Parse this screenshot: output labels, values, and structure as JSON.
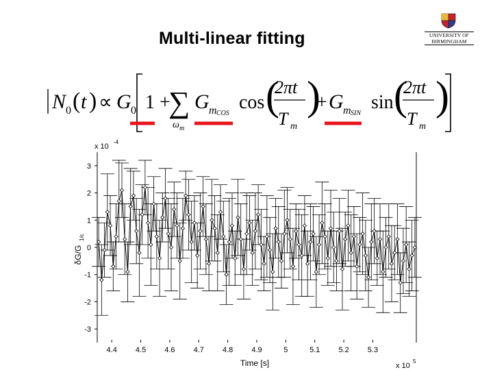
{
  "slide": {
    "title": "Multi-linear fitting"
  },
  "logo": {
    "name_line1": "UNIVERSITY OF",
    "name_line2": "BIRMINGHAM",
    "colors": {
      "crest_red": "#c8232c",
      "crest_gold": "#e8b73a",
      "crest_blue": "#2c3e8c"
    }
  },
  "equation": {
    "lhs_abs": "N",
    "lhs_sub": "0",
    "lhs_arg": "t",
    "proportional": "∝",
    "g0": "G",
    "g0_sub": "0",
    "one_plus": "1 +",
    "sum": "∑",
    "sum_index": "ω",
    "sum_index_sub": "m",
    "gcos": "G",
    "gcos_sub": "m",
    "gcos_subsub": "COS",
    "cos": "cos",
    "numerator": "2πt",
    "denominator": "T",
    "denominator_sub": "m",
    "plus": "+",
    "gsin": "G",
    "gsin_sub": "m",
    "gsin_subsub": "SIN",
    "sin": "sin",
    "underline_color": "#e8141c"
  },
  "chart_data": {
    "type": "scatter",
    "style": "line with markers and error bars",
    "marker": "diamond",
    "xlabel": "Time [s]",
    "ylabel": "δG/G",
    "ylabel_sub": "1/c",
    "x_exponent_label": "x 10",
    "x_exponent_power": "5",
    "y_exponent_label": "x 10",
    "y_exponent_power": "-4",
    "xlim": [
      4.35,
      5.45
    ],
    "ylim": [
      -3.5,
      3.5
    ],
    "x_ticks": [
      4.4,
      4.5,
      4.6,
      4.7,
      4.8,
      4.9,
      5.0,
      5.1,
      5.2,
      5.3
    ],
    "x_tick_labels": [
      "4.4",
      "4.5",
      "4.6",
      "4.7",
      "4.8",
      "4.9",
      "5",
      "5.1",
      "5.2",
      "5.3"
    ],
    "y_ticks": [
      3,
      2,
      1,
      0,
      -1,
      -2,
      -3
    ],
    "y_tick_labels": [
      "3",
      "2",
      "1",
      "0",
      "-1",
      "-2",
      "-3"
    ],
    "grid": false,
    "series": [
      {
        "x": [
          4.355,
          4.365,
          4.375,
          4.385,
          4.395,
          4.405,
          4.415,
          4.425,
          4.435,
          4.445,
          4.455,
          4.465,
          4.475,
          4.485,
          4.495,
          4.505,
          4.515,
          4.525,
          4.535,
          4.545,
          4.555,
          4.565,
          4.575,
          4.585,
          4.595,
          4.605,
          4.615,
          4.625,
          4.635,
          4.645,
          4.655,
          4.665,
          4.675,
          4.685,
          4.695,
          4.705,
          4.715,
          4.725,
          4.735,
          4.745,
          4.755,
          4.765,
          4.775,
          4.785,
          4.795,
          4.805,
          4.815,
          4.825,
          4.835,
          4.845,
          4.855,
          4.865,
          4.875,
          4.885,
          4.895,
          4.905,
          4.915,
          4.925,
          4.935,
          4.945,
          4.955,
          4.965,
          4.975,
          4.985,
          4.995,
          5.005,
          5.015,
          5.025,
          5.035,
          5.045,
          5.055,
          5.065,
          5.075,
          5.085,
          5.095,
          5.105,
          5.115,
          5.125,
          5.135,
          5.145,
          5.155,
          5.165,
          5.175,
          5.185,
          5.195,
          5.205,
          5.215,
          5.225,
          5.235,
          5.245,
          5.255,
          5.265,
          5.275,
          5.285,
          5.295,
          5.305,
          5.315,
          5.325,
          5.335,
          5.345,
          5.355,
          5.365,
          5.375,
          5.385,
          5.395,
          5.405,
          5.415,
          5.425,
          5.435,
          5.445
        ],
        "y": [
          0.2,
          -1.2,
          -0.1,
          1.3,
          0.8,
          -0.7,
          0.4,
          1.7,
          2.1,
          0.3,
          -0.9,
          1.5,
          1.9,
          0.6,
          -0.2,
          1.2,
          2.2,
          0.9,
          0.1,
          1.6,
          0.4,
          -0.4,
          1.1,
          1.8,
          0.5,
          0.0,
          1.4,
          0.8,
          -0.5,
          0.7,
          1.9,
          1.2,
          0.2,
          0.9,
          -0.3,
          0.6,
          1.5,
          0.3,
          -0.6,
          1.0,
          0.7,
          -0.2,
          1.3,
          0.4,
          -1.0,
          0.2,
          0.8,
          -0.4,
          1.1,
          0.3,
          -0.8,
          0.5,
          0.9,
          -0.2,
          0.6,
          1.2,
          0.1,
          -0.6,
          0.4,
          -0.1,
          -0.9,
          0.7,
          0.2,
          -0.5,
          0.5,
          1.0,
          0.3,
          -0.7,
          0.6,
          0.1,
          -0.3,
          0.8,
          -0.6,
          0.2,
          0.5,
          -0.9,
          0.1,
          0.9,
          0.4,
          -0.4,
          0.7,
          0.0,
          -0.5,
          0.6,
          -0.8,
          0.3,
          0.8,
          -0.2,
          0.4,
          -0.7,
          0.1,
          0.5,
          -0.3,
          -1.1,
          0.2,
          0.6,
          -0.4,
          0.3,
          -0.9,
          0.0,
          0.4,
          -0.6,
          -0.2,
          0.3,
          -1.3,
          -0.5,
          0.1,
          -0.8,
          -0.3,
          0.0
        ],
        "err": [
          0.9,
          1.3,
          1.0,
          1.4,
          1.1,
          0.9,
          1.2,
          1.5,
          1.0,
          1.3,
          1.1,
          1.4,
          0.9,
          1.2,
          1.6,
          1.1,
          1.0,
          1.3,
          1.5,
          1.0,
          1.2,
          1.4,
          0.9,
          1.1,
          1.3,
          1.6,
          1.0,
          1.2,
          1.4,
          1.1,
          0.9,
          1.3,
          1.5,
          1.0,
          1.2,
          1.4,
          1.1,
          1.3,
          1.0,
          1.5,
          1.2,
          1.4,
          1.0,
          1.3,
          1.1,
          1.6,
          1.2,
          1.0,
          1.4,
          1.3,
          1.1,
          1.5,
          1.0,
          1.2,
          1.4,
          1.1,
          1.3,
          1.0,
          1.5,
          1.2,
          1.4,
          1.1,
          1.3,
          1.0,
          1.6,
          1.2,
          1.1,
          1.4,
          1.0,
          1.3,
          1.5,
          1.1,
          1.2,
          1.4,
          1.0,
          1.3,
          1.1,
          1.5,
          1.2,
          1.0,
          1.4,
          1.3,
          1.1,
          1.2,
          1.5,
          1.0,
          1.3,
          1.4,
          1.1,
          1.2,
          1.0,
          1.5,
          1.3,
          1.1,
          1.4,
          1.2,
          1.0,
          1.3,
          1.5,
          1.1,
          1.2,
          1.4,
          1.0,
          1.3,
          1.1,
          1.2,
          1.4,
          1.0,
          1.3,
          1.1
        ]
      }
    ]
  }
}
